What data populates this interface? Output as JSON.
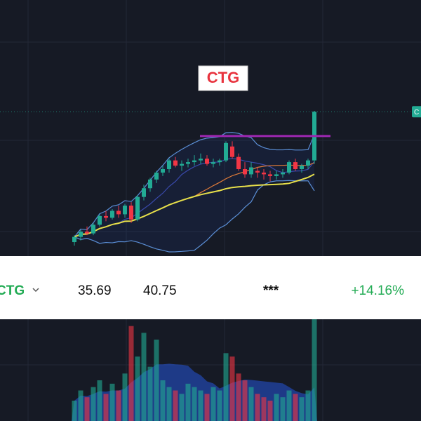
{
  "title_badge": "CTG",
  "chart_data": {
    "type": "candlestick",
    "open": [
      33.2,
      33.5,
      33.8,
      33.7,
      34.2,
      34.7,
      34.6,
      35.0,
      34.8,
      35.3,
      34.5,
      35.8,
      36.3,
      36.8,
      37.2,
      37.4,
      37.9,
      37.6,
      37.7,
      37.8,
      37.9,
      38.0,
      37.7,
      37.8,
      37.9,
      38.7,
      38.1,
      37.4,
      37.1,
      37.3,
      37.2,
      37.1,
      37.0,
      37.1,
      37.2,
      37.8,
      37.4,
      37.6,
      37.9
    ],
    "high": [
      33.6,
      33.9,
      34.1,
      34.3,
      34.8,
      35.0,
      35.1,
      35.3,
      35.4,
      35.5,
      35.9,
      36.5,
      36.9,
      37.3,
      37.6,
      38.0,
      38.1,
      37.9,
      38.0,
      38.2,
      38.3,
      38.2,
      38.0,
      38.0,
      39.0,
      39.0,
      38.3,
      37.8,
      37.8,
      37.5,
      37.4,
      37.3,
      37.3,
      37.4,
      37.9,
      38.0,
      37.7,
      38.0,
      40.75
    ],
    "low": [
      33.0,
      33.3,
      33.6,
      33.6,
      34.1,
      34.4,
      34.5,
      34.6,
      34.6,
      34.3,
      34.4,
      35.6,
      36.1,
      36.6,
      37.0,
      37.2,
      37.5,
      37.3,
      37.5,
      37.6,
      37.7,
      37.6,
      37.5,
      37.6,
      37.8,
      38.0,
      37.3,
      36.9,
      36.9,
      36.9,
      36.8,
      36.7,
      36.8,
      36.9,
      37.1,
      37.3,
      37.2,
      37.4,
      37.7
    ],
    "close": [
      33.5,
      33.8,
      33.7,
      34.2,
      34.7,
      34.6,
      35.0,
      34.8,
      35.3,
      34.5,
      35.8,
      36.3,
      36.8,
      37.2,
      37.4,
      37.9,
      37.6,
      37.7,
      37.8,
      37.9,
      38.0,
      37.7,
      37.8,
      37.9,
      38.9,
      38.1,
      37.4,
      37.1,
      37.5,
      37.2,
      37.1,
      37.0,
      37.1,
      37.2,
      37.8,
      37.4,
      37.6,
      37.9,
      40.7
    ],
    "volume": [
      30,
      45,
      35,
      50,
      60,
      40,
      55,
      45,
      70,
      140,
      95,
      130,
      80,
      120,
      60,
      50,
      45,
      40,
      55,
      50,
      45,
      40,
      50,
      45,
      100,
      95,
      70,
      60,
      50,
      40,
      35,
      30,
      40,
      35,
      45,
      40,
      35,
      45,
      150
    ],
    "up_color": "#22ab94",
    "down_color": "#f23645",
    "horizontal_line": 39.3,
    "horizontal_line_color": "#9c27b0",
    "price_label": "C"
  },
  "watchlist_row": {
    "symbol": "CTG",
    "price": 35.69,
    "high": 40.75,
    "masked": "***",
    "change": "+14.16%"
  }
}
